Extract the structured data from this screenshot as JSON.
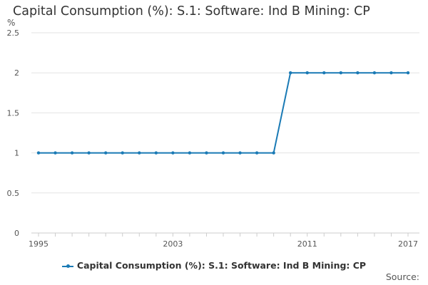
{
  "chart_data": {
    "type": "line",
    "title": "Capital Consumption (%): S.1: Software: Ind B Mining: CP",
    "ylabel": "%",
    "xlabel": "",
    "ylim": [
      0,
      2.5
    ],
    "yticks": [
      "0",
      "0.5",
      "1",
      "1.5",
      "2",
      "2.5"
    ],
    "xticks": [
      "1995",
      "2003",
      "2011",
      "2017"
    ],
    "x": [
      1995,
      1996,
      1997,
      1998,
      1999,
      2000,
      2001,
      2002,
      2003,
      2004,
      2005,
      2006,
      2007,
      2008,
      2009,
      2010,
      2011,
      2012,
      2013,
      2014,
      2015,
      2016,
      2017
    ],
    "series": [
      {
        "name": "Capital Consumption (%): S.1: Software: Ind B Mining: CP",
        "color": "#1a7ab5",
        "values": [
          1,
          1,
          1,
          1,
          1,
          1,
          1,
          1,
          1,
          1,
          1,
          1,
          1,
          1,
          1,
          2,
          2,
          2,
          2,
          2,
          2,
          2,
          2
        ]
      }
    ],
    "grid": true,
    "legend_position": "bottom"
  },
  "footer": {
    "source_label": "Source:"
  }
}
